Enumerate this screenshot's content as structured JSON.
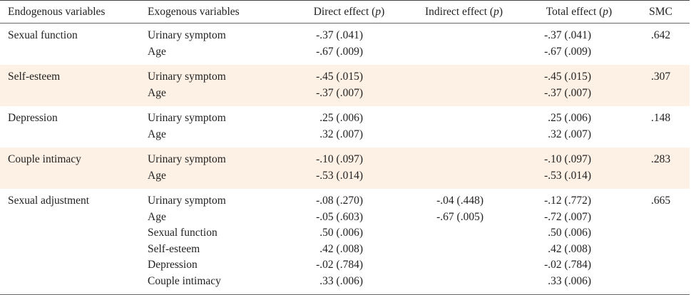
{
  "headers": {
    "endogenous": "Endogenous variables",
    "exogenous": "Exogenous variables",
    "direct_prefix": "Direct effect (",
    "indirect_prefix": "Indirect effect (",
    "total_prefix": "Total effect (",
    "p": "p",
    "suffix": ")",
    "smc": "SMC"
  },
  "rows": [
    {
      "endogenous": "Sexual function",
      "exogenous": [
        "Urinary symptom",
        "Age"
      ],
      "direct": [
        "-.37 (.041)",
        "-.67 (.009)"
      ],
      "indirect": [
        "",
        ""
      ],
      "total": [
        "-.37 (.041)",
        "-.67 (.009)"
      ],
      "smc": ".642"
    },
    {
      "endogenous": "Self-esteem",
      "exogenous": [
        "Urinary symptom",
        "Age"
      ],
      "direct": [
        "-.45 (.015)",
        "-.37 (.007)"
      ],
      "indirect": [
        "",
        ""
      ],
      "total": [
        "-.45 (.015)",
        "-.37 (.007)"
      ],
      "smc": ".307"
    },
    {
      "endogenous": "Depression",
      "exogenous": [
        "Urinary symptom",
        "Age"
      ],
      "direct": [
        ".25 (.006)",
        ".32 (.007)"
      ],
      "indirect": [
        "",
        ""
      ],
      "total": [
        ".25 (.006)",
        ".32 (.007)"
      ],
      "smc": ".148"
    },
    {
      "endogenous": "Couple intimacy",
      "exogenous": [
        "Urinary symptom",
        "Age"
      ],
      "direct": [
        "-.10 (.097)",
        "-.53 (.014)"
      ],
      "indirect": [
        "",
        ""
      ],
      "total": [
        "-.10 (.097)",
        "-.53 (.014)"
      ],
      "smc": ".283"
    },
    {
      "endogenous": "Sexual adjustment",
      "exogenous": [
        "Urinary symptom",
        "Age",
        "Sexual function",
        "Self-esteem",
        "Depression",
        "Couple intimacy"
      ],
      "direct": [
        "-.08 (.270)",
        "-.05 (.603)",
        ".50 (.006)",
        ".42 (.008)",
        "-.02 (.784)",
        ".33 (.006)"
      ],
      "indirect": [
        "-.04 (.448)",
        "-.67 (.005)",
        "",
        "",
        "",
        ""
      ],
      "total": [
        "-.12 (.772)",
        "-.72 (.007)",
        ".50 (.006)",
        ".42 (.008)",
        "-.02 (.784)",
        ".33 (.006)"
      ],
      "smc": ".665"
    }
  ]
}
